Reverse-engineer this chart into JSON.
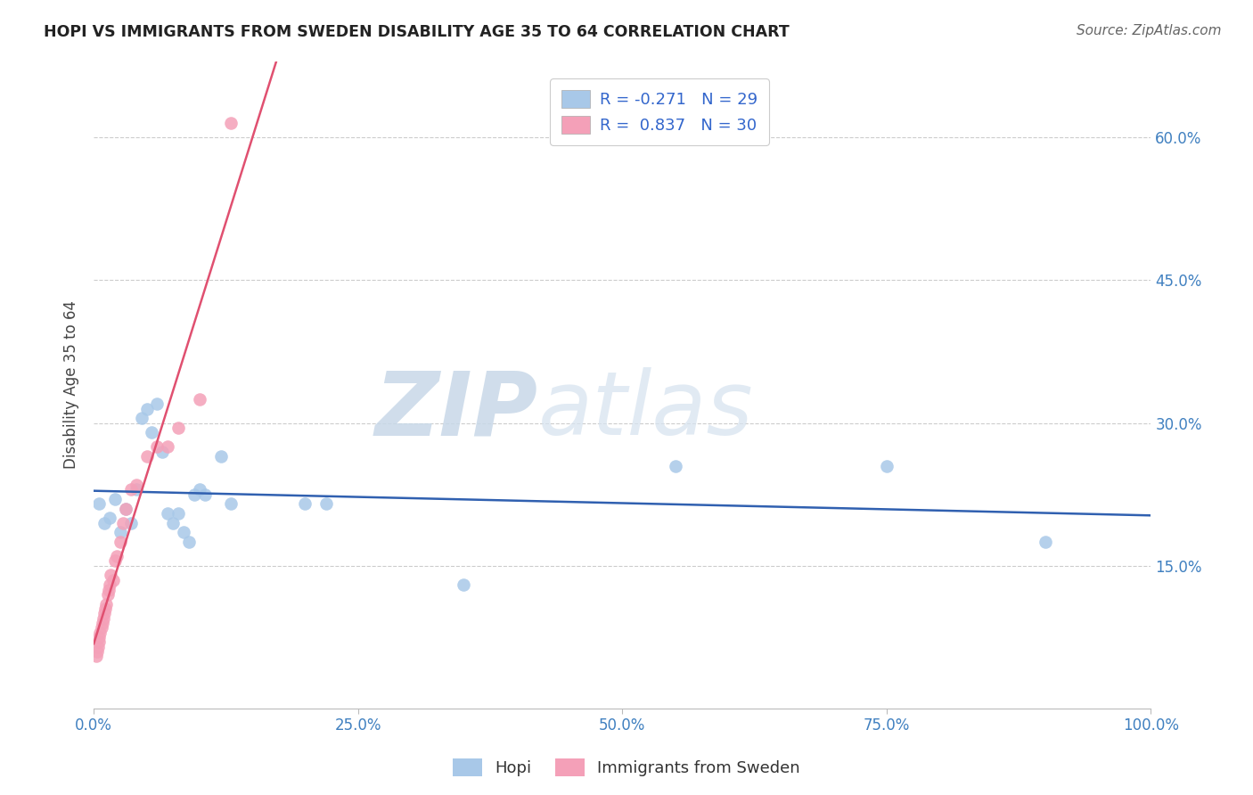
{
  "title": "HOPI VS IMMIGRANTS FROM SWEDEN DISABILITY AGE 35 TO 64 CORRELATION CHART",
  "source": "Source: ZipAtlas.com",
  "xlabel": "",
  "ylabel": "Disability Age 35 to 64",
  "legend_label1": "Hopi",
  "legend_label2": "Immigrants from Sweden",
  "R1": -0.271,
  "N1": 29,
  "R2": 0.837,
  "N2": 30,
  "color1": "#a8c8e8",
  "color2": "#f4a0b8",
  "line_color1": "#3060b0",
  "line_color2": "#e05070",
  "xlim": [
    0.0,
    1.0
  ],
  "ylim": [
    0.0,
    0.68
  ],
  "yticks": [
    0.15,
    0.3,
    0.45,
    0.6
  ],
  "ytick_labels": [
    "15.0%",
    "30.0%",
    "45.0%",
    "60.0%"
  ],
  "xticks": [
    0.0,
    0.25,
    0.5,
    0.75,
    1.0
  ],
  "xtick_labels": [
    "0.0%",
    "25.0%",
    "50.0%",
    "75.0%",
    "100.0%"
  ],
  "watermark_zip": "ZIP",
  "watermark_atlas": "atlas",
  "hopi_x": [
    0.005,
    0.01,
    0.015,
    0.02,
    0.025,
    0.03,
    0.035,
    0.04,
    0.045,
    0.05,
    0.055,
    0.06,
    0.065,
    0.07,
    0.075,
    0.08,
    0.085,
    0.09,
    0.095,
    0.1,
    0.105,
    0.12,
    0.13,
    0.2,
    0.22,
    0.35,
    0.55,
    0.75,
    0.9
  ],
  "hopi_y": [
    0.215,
    0.195,
    0.2,
    0.22,
    0.185,
    0.21,
    0.195,
    0.23,
    0.305,
    0.315,
    0.29,
    0.32,
    0.27,
    0.205,
    0.195,
    0.205,
    0.185,
    0.175,
    0.225,
    0.23,
    0.225,
    0.265,
    0.215,
    0.215,
    0.215,
    0.13,
    0.255,
    0.255,
    0.175
  ],
  "sweden_x": [
    0.002,
    0.003,
    0.004,
    0.005,
    0.005,
    0.006,
    0.007,
    0.008,
    0.009,
    0.01,
    0.011,
    0.012,
    0.013,
    0.014,
    0.015,
    0.016,
    0.018,
    0.02,
    0.022,
    0.025,
    0.028,
    0.03,
    0.035,
    0.04,
    0.05,
    0.06,
    0.07,
    0.08,
    0.1,
    0.13
  ],
  "sweden_y": [
    0.055,
    0.06,
    0.065,
    0.07,
    0.075,
    0.08,
    0.085,
    0.09,
    0.095,
    0.1,
    0.105,
    0.11,
    0.12,
    0.125,
    0.13,
    0.14,
    0.135,
    0.155,
    0.16,
    0.175,
    0.195,
    0.21,
    0.23,
    0.235,
    0.265,
    0.275,
    0.275,
    0.295,
    0.325,
    0.615
  ]
}
